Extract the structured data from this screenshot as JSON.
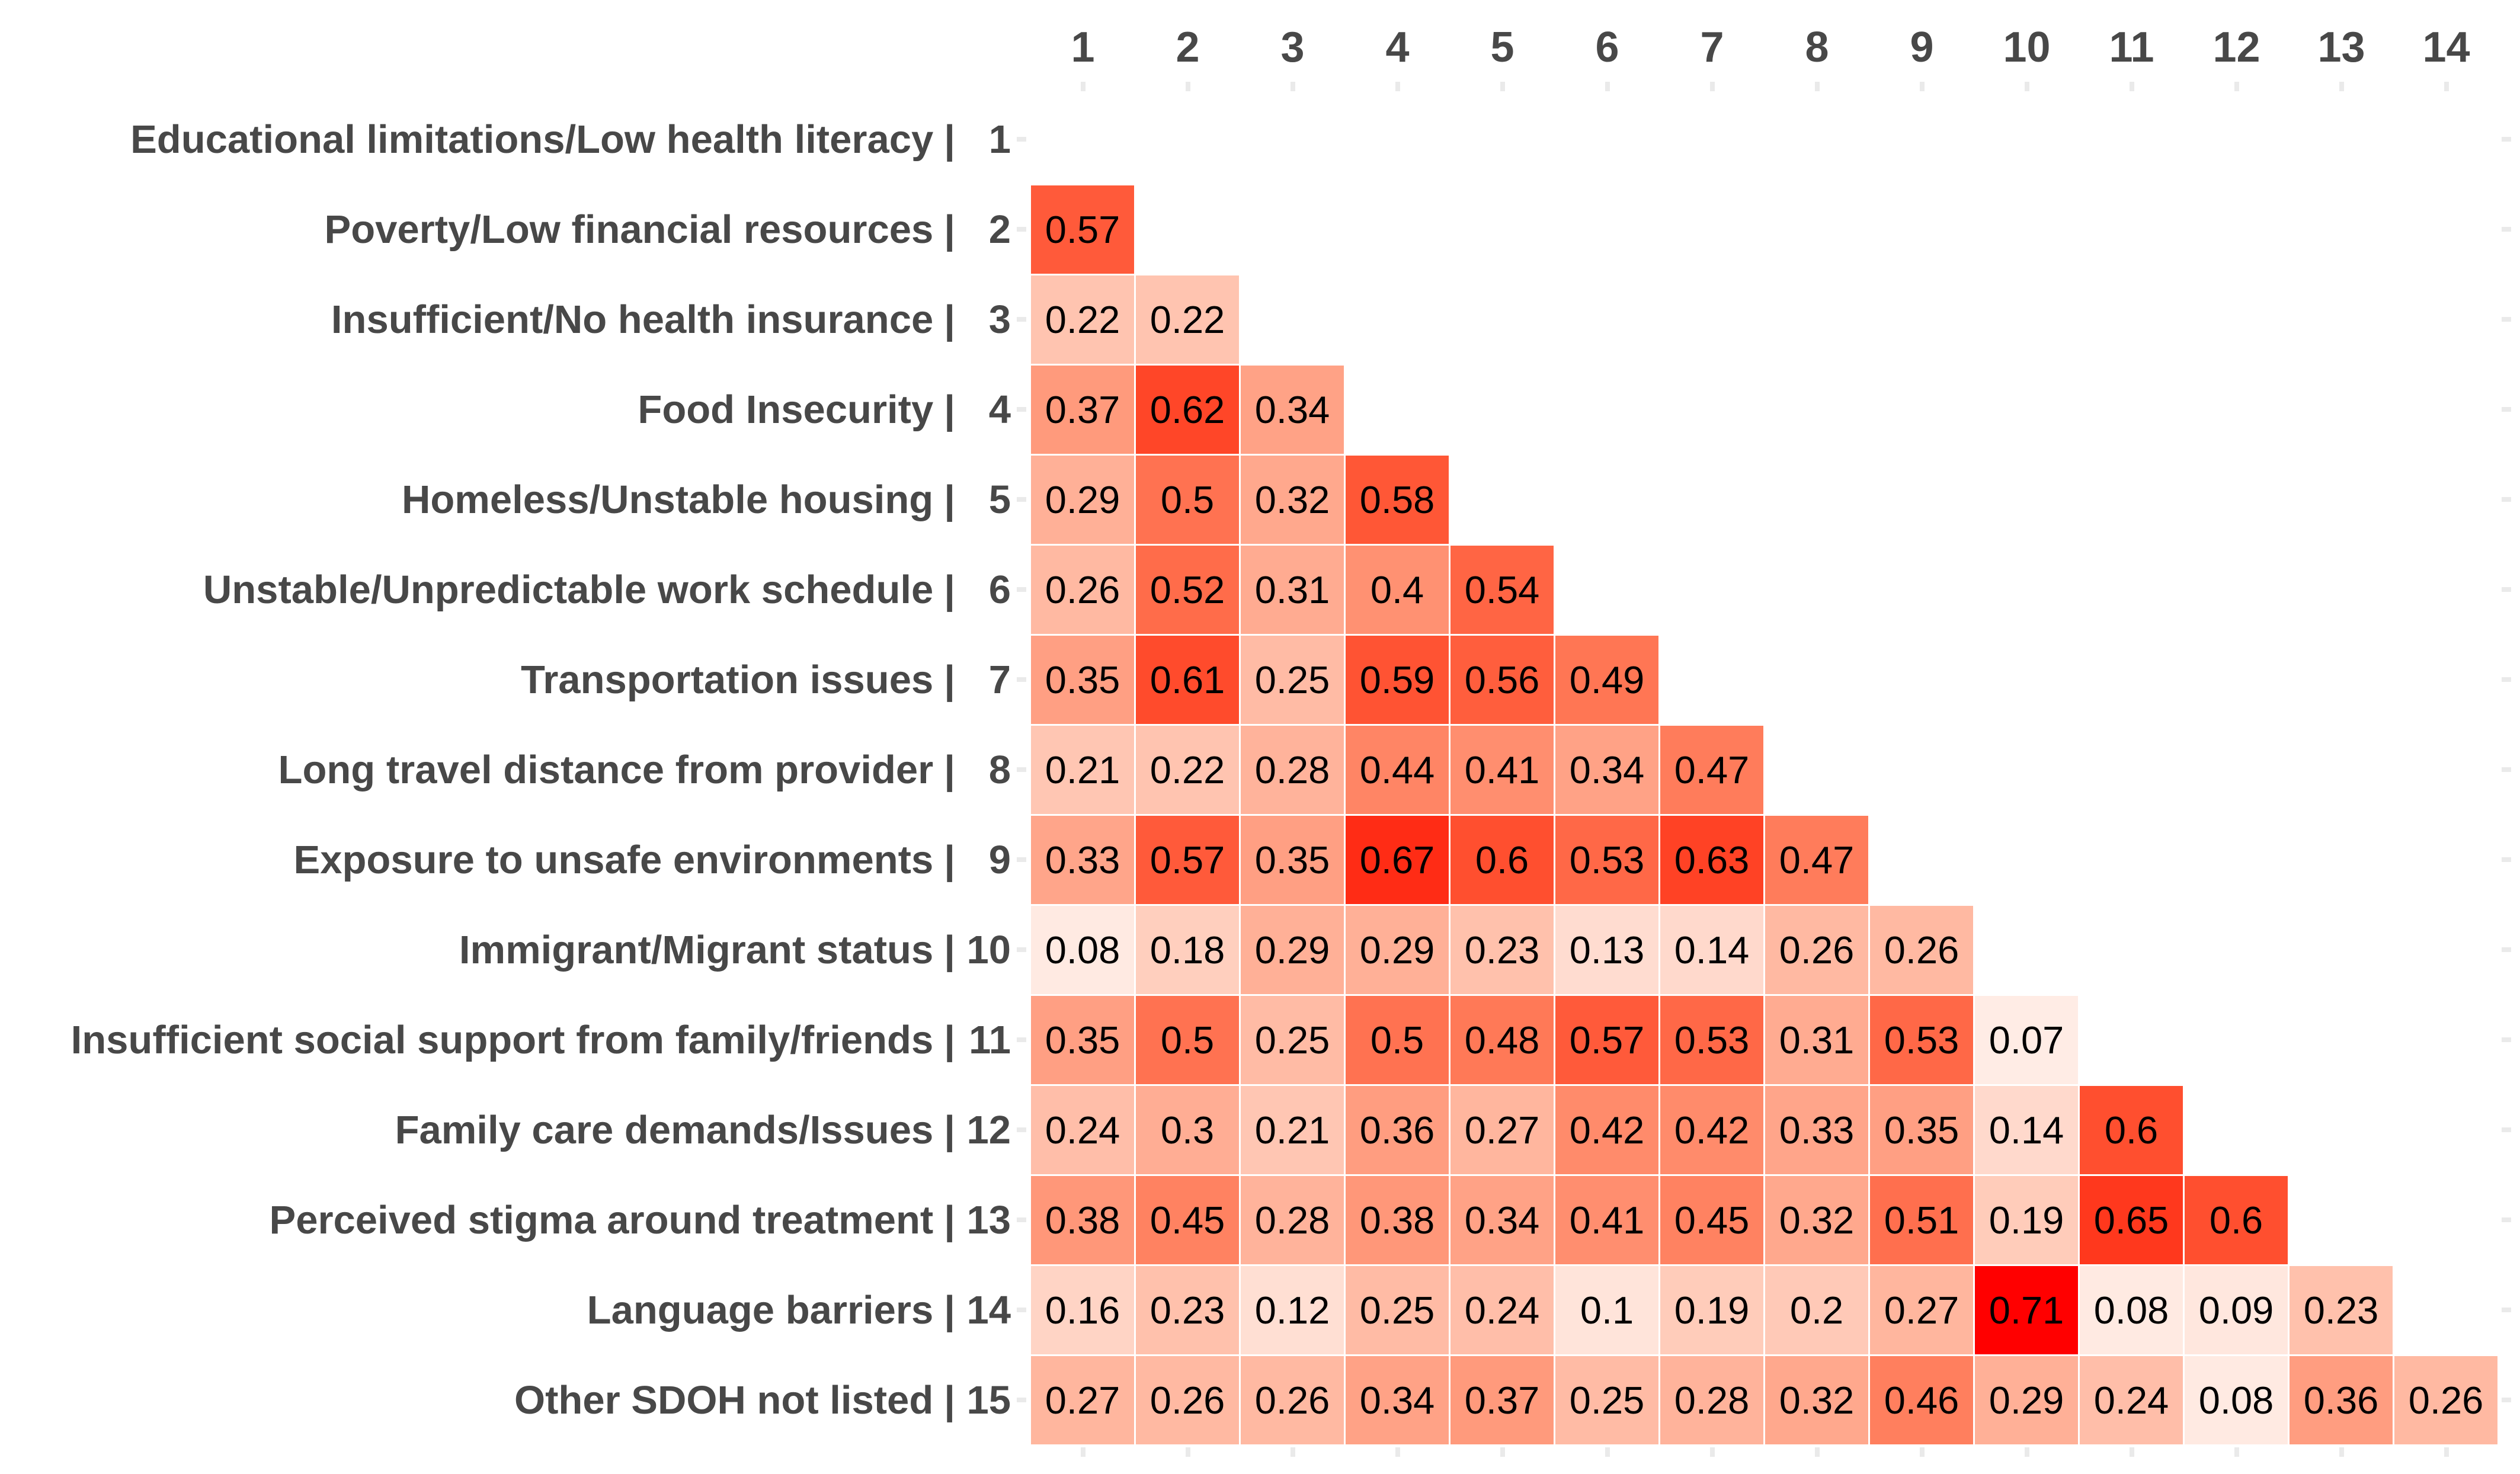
{
  "chart_data": {
    "type": "heatmap",
    "title": "",
    "subtitle": "",
    "legend": "none",
    "grid": "off",
    "column_headers": [
      "1",
      "2",
      "3",
      "4",
      "5",
      "6",
      "7",
      "8",
      "9",
      "10",
      "11",
      "12",
      "13",
      "14"
    ],
    "separator": "|",
    "rows": [
      {
        "label": "Educational limitations/Low health literacy",
        "number": "1",
        "values": []
      },
      {
        "label": "Poverty/Low financial resources",
        "number": "2",
        "values": [
          0.57
        ]
      },
      {
        "label": "Insufficient/No health insurance",
        "number": "3",
        "values": [
          0.22,
          0.22
        ]
      },
      {
        "label": "Food Insecurity",
        "number": "4",
        "values": [
          0.37,
          0.62,
          0.34
        ]
      },
      {
        "label": "Homeless/Unstable housing",
        "number": "5",
        "values": [
          0.29,
          0.5,
          0.32,
          0.58
        ]
      },
      {
        "label": "Unstable/Unpredictable work schedule",
        "number": "6",
        "values": [
          0.26,
          0.52,
          0.31,
          0.4,
          0.54
        ]
      },
      {
        "label": "Transportation issues",
        "number": "7",
        "values": [
          0.35,
          0.61,
          0.25,
          0.59,
          0.56,
          0.49
        ]
      },
      {
        "label": "Long travel distance from provider",
        "number": "8",
        "values": [
          0.21,
          0.22,
          0.28,
          0.44,
          0.41,
          0.34,
          0.47
        ]
      },
      {
        "label": "Exposure to unsafe environments",
        "number": "9",
        "values": [
          0.33,
          0.57,
          0.35,
          0.67,
          0.6,
          0.53,
          0.63,
          0.47
        ]
      },
      {
        "label": "Immigrant/Migrant status",
        "number": "10",
        "values": [
          0.08,
          0.18,
          0.29,
          0.29,
          0.23,
          0.13,
          0.14,
          0.26,
          0.26
        ]
      },
      {
        "label": "Insufficient social support from family/friends",
        "number": "11",
        "values": [
          0.35,
          0.5,
          0.25,
          0.5,
          0.48,
          0.57,
          0.53,
          0.31,
          0.53,
          0.07
        ]
      },
      {
        "label": "Family care demands/Issues",
        "number": "12",
        "values": [
          0.24,
          0.3,
          0.21,
          0.36,
          0.27,
          0.42,
          0.42,
          0.33,
          0.35,
          0.14,
          0.6
        ]
      },
      {
        "label": "Perceived stigma around treatment",
        "number": "13",
        "values": [
          0.38,
          0.45,
          0.28,
          0.38,
          0.34,
          0.41,
          0.45,
          0.32,
          0.51,
          0.19,
          0.65,
          0.6
        ]
      },
      {
        "label": "Language barriers",
        "number": "14",
        "values": [
          0.16,
          0.23,
          0.12,
          0.25,
          0.24,
          0.1,
          0.19,
          0.2,
          0.27,
          0.71,
          0.08,
          0.09,
          0.23
        ]
      },
      {
        "label": "Other SDOH not listed",
        "number": "15",
        "values": [
          0.27,
          0.26,
          0.26,
          0.34,
          0.37,
          0.25,
          0.28,
          0.32,
          0.46,
          0.29,
          0.24,
          0.08,
          0.36,
          0.26
        ]
      }
    ],
    "color_scale": {
      "low": "#FFFFFF",
      "high": "#FF0000",
      "space": "lab",
      "domain": [
        0,
        0.71
      ]
    },
    "label_color": "#484848",
    "value_color": "#000000",
    "tick_color": "#EAEAEA",
    "background": "#FFFFFF",
    "axis_ranges": {
      "columns": [
        1,
        14
      ],
      "rows": [
        1,
        15
      ]
    }
  }
}
